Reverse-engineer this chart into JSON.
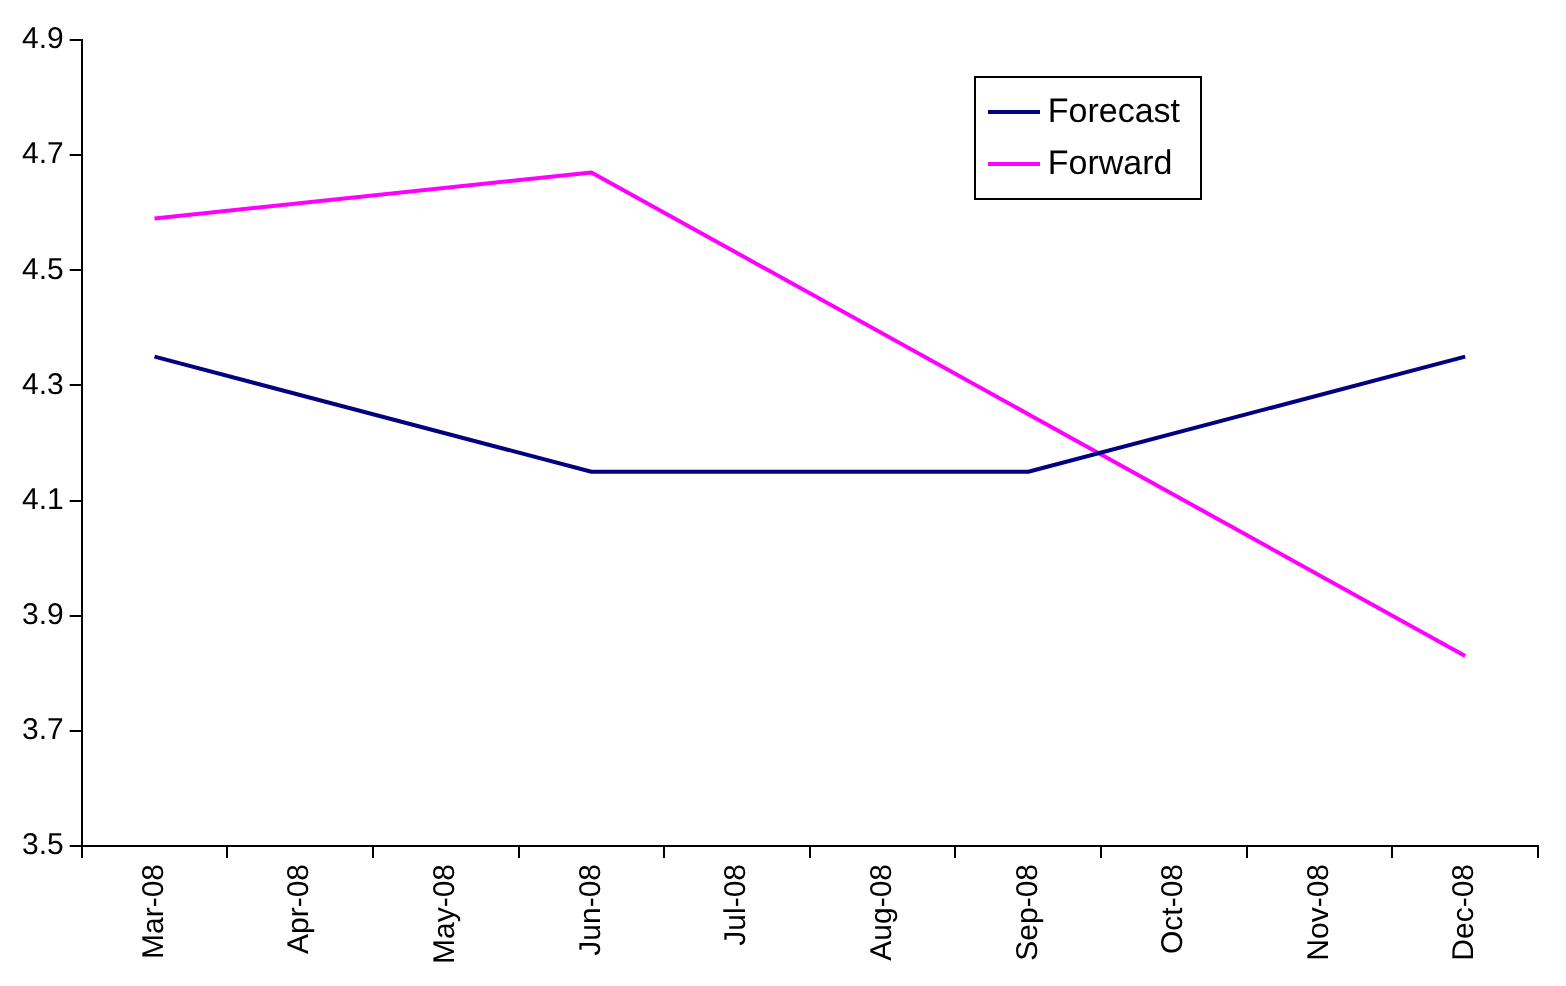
{
  "chart_data": {
    "type": "line",
    "categories": [
      "Mar-08",
      "Apr-08",
      "May-08",
      "Jun-08",
      "Jul-08",
      "Aug-08",
      "Sep-08",
      "Oct-08",
      "Nov-08",
      "Dec-08"
    ],
    "series": [
      {
        "name": "Forecast",
        "color": "#000080",
        "values": [
          4.35,
          null,
          null,
          4.15,
          null,
          null,
          4.15,
          null,
          null,
          4.35
        ]
      },
      {
        "name": "Forward",
        "color": "#ff00ff",
        "values": [
          4.59,
          null,
          null,
          4.67,
          null,
          null,
          4.25,
          null,
          null,
          3.83
        ]
      }
    ],
    "ylim": [
      3.5,
      4.9
    ],
    "yticks": [
      3.5,
      3.7,
      3.9,
      4.1,
      4.3,
      4.5,
      4.7,
      4.9
    ],
    "grid": false,
    "legend": "top right",
    "marker": "none"
  }
}
